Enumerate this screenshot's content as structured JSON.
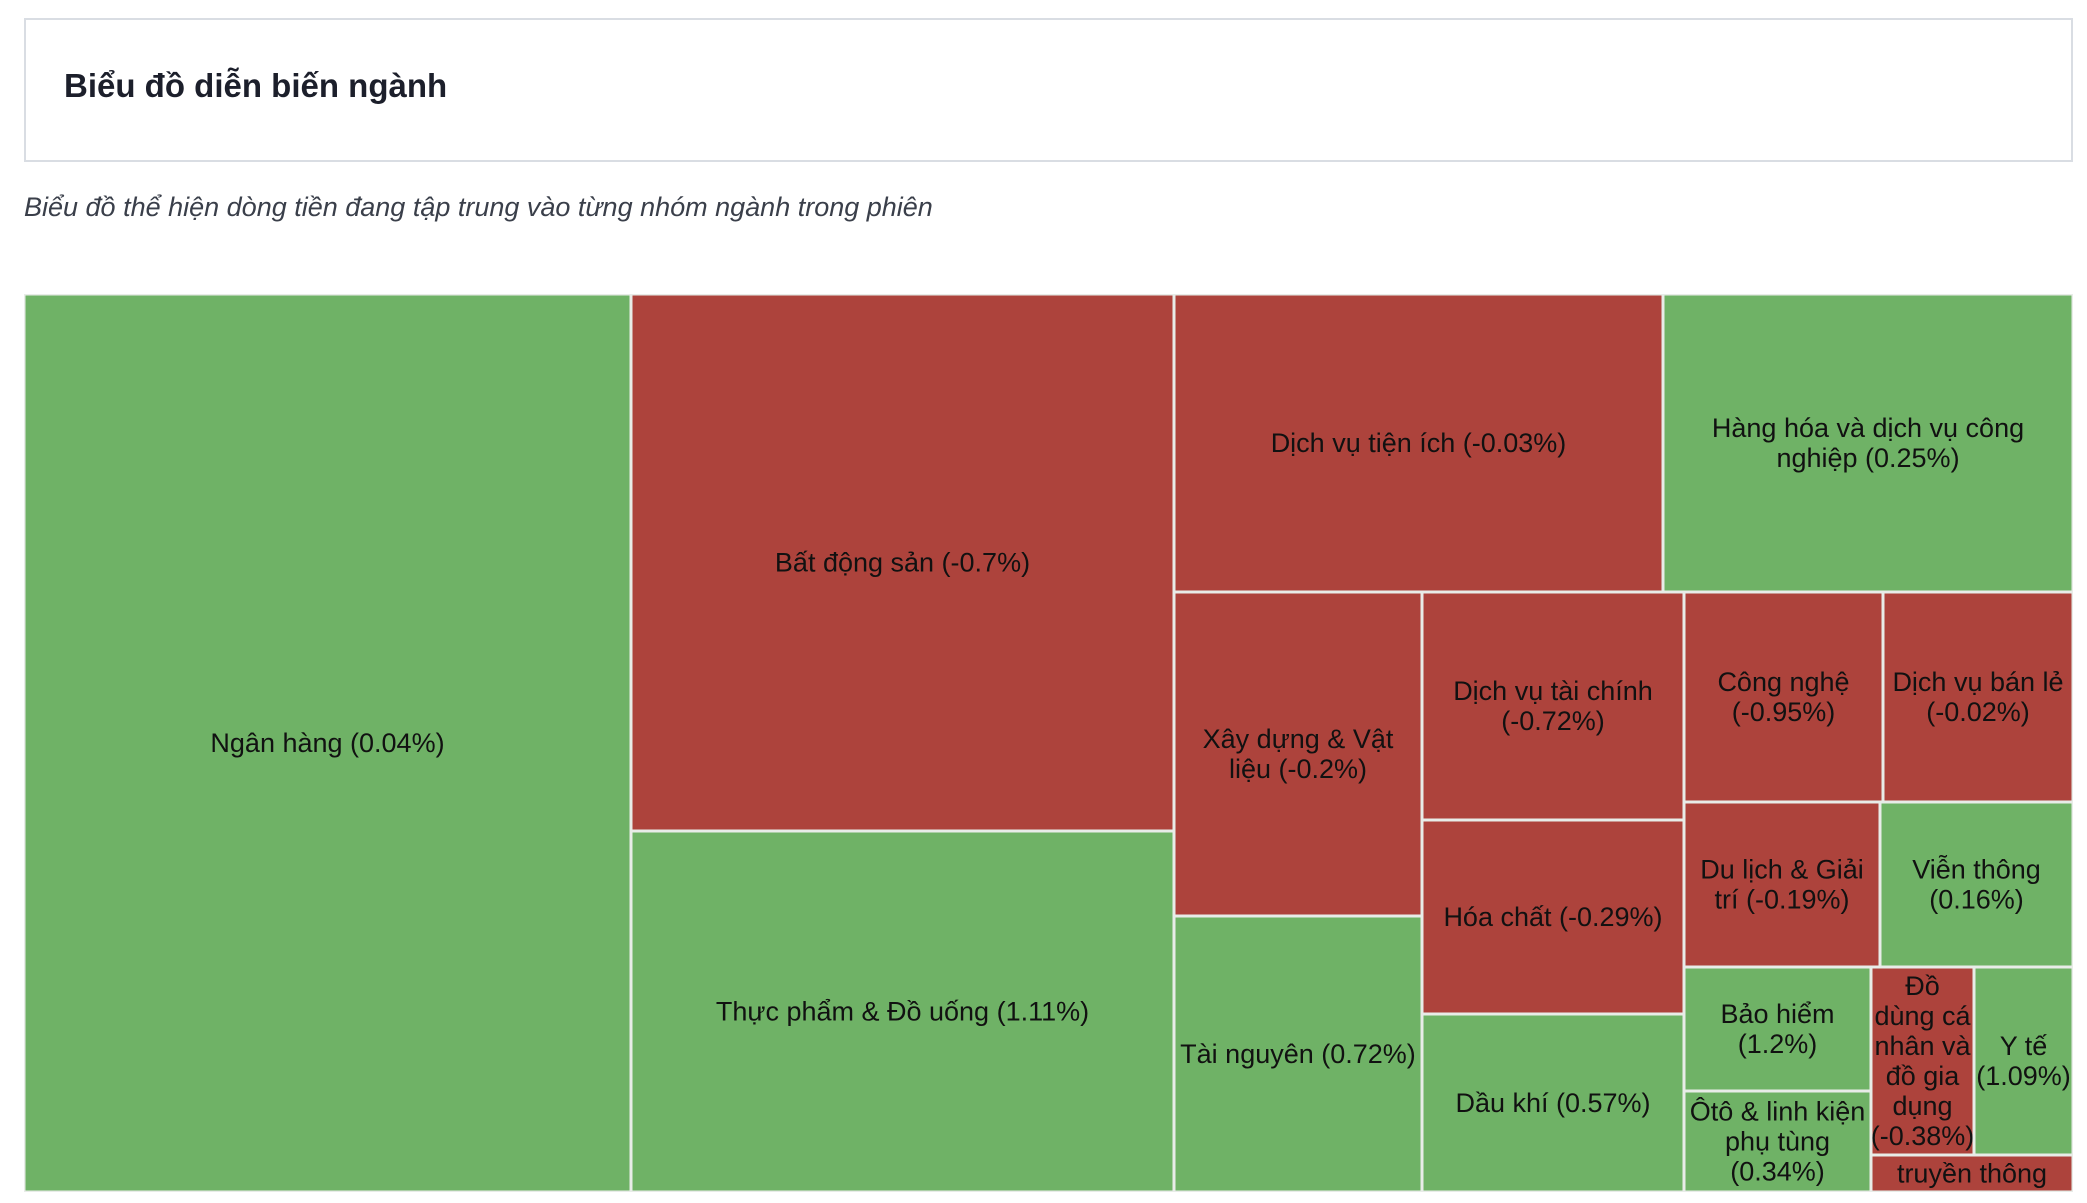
{
  "header": {
    "title": "Biểu đồ diễn biến ngành"
  },
  "subtitle": "Biểu đồ thể hiện dòng tiền đang tập trung vào từng nhóm ngành trong phiên",
  "colors": {
    "up": "#6fb266",
    "down": "#ad433c",
    "border": "#e8ece8"
  },
  "chart_data": {
    "type": "treemap",
    "title": "",
    "items": [
      {
        "name": "Ngân hàng",
        "change": 0.04,
        "label_lines": [
          "Ngân hàng (0.04%)"
        ]
      },
      {
        "name": "Bất động sản",
        "change": -0.7,
        "label_lines": [
          "Bất động sản (-0.7%)"
        ]
      },
      {
        "name": "Thực phẩm & Đồ uống",
        "change": 1.11,
        "label_lines": [
          "Thực phẩm & Đồ uống (1.11%)"
        ]
      },
      {
        "name": "Dịch vụ tiện ích",
        "change": -0.03,
        "label_lines": [
          "Dịch vụ tiện ích (-0.03%)"
        ]
      },
      {
        "name": "Hàng hóa và dịch vụ công nghiệp",
        "change": 0.25,
        "label_lines": [
          "Hàng hóa và dịch vụ công",
          "nghiệp (0.25%)"
        ]
      },
      {
        "name": "Xây dựng & Vật liệu",
        "change": -0.2,
        "label_lines": [
          "Xây dựng & Vật",
          "liệu (-0.2%)"
        ]
      },
      {
        "name": "Tài nguyên",
        "change": 0.72,
        "label_lines": [
          "Tài nguyên (0.72%)"
        ]
      },
      {
        "name": "Dịch vụ tài chính",
        "change": -0.72,
        "label_lines": [
          "Dịch vụ tài chính",
          "(-0.72%)"
        ]
      },
      {
        "name": "Hóa chất",
        "change": -0.29,
        "label_lines": [
          "Hóa chất (-0.29%)"
        ]
      },
      {
        "name": "Dầu khí",
        "change": 0.57,
        "label_lines": [
          "Dầu khí (0.57%)"
        ]
      },
      {
        "name": "Công nghệ",
        "change": -0.95,
        "label_lines": [
          "Công nghệ",
          "(-0.95%)"
        ]
      },
      {
        "name": "Dịch vụ bán lẻ",
        "change": -0.02,
        "label_lines": [
          "Dịch vụ bán lẻ",
          "(-0.02%)"
        ]
      },
      {
        "name": "Du lịch & Giải trí",
        "change": -0.19,
        "label_lines": [
          "Du lịch & Giải",
          "trí (-0.19%)"
        ]
      },
      {
        "name": "Viễn thông",
        "change": 0.16,
        "label_lines": [
          "Viễn thông",
          "(0.16%)"
        ]
      },
      {
        "name": "Bảo hiểm",
        "change": 1.2,
        "label_lines": [
          "Bảo hiểm",
          "(1.2%)"
        ]
      },
      {
        "name": "Ôtô & linh kiện phụ tùng",
        "change": 0.34,
        "label_lines": [
          "Ôtô & linh kiện",
          "phụ tùng",
          "(0.34%)"
        ]
      },
      {
        "name": "Đồ dùng cá nhân và đồ gia dụng",
        "change": -0.38,
        "label_lines": [
          "Đồ",
          "dùng cá",
          "nhân và",
          "đồ gia",
          "dụng",
          "(-0.38%)"
        ]
      },
      {
        "name": "Y tế",
        "change": 1.09,
        "label_lines": [
          "Y tế",
          "(1.09%)"
        ]
      },
      {
        "name": "truyền thông",
        "change": null,
        "label_lines": [
          "truyền thông"
        ]
      }
    ]
  }
}
